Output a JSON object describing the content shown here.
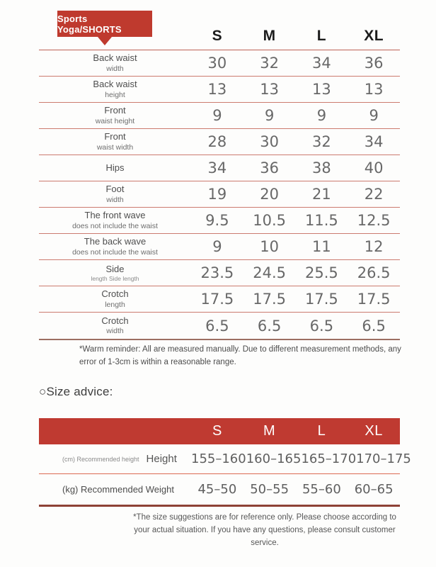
{
  "header": {
    "badge_label": "Sports Yoga/SHORTS"
  },
  "measurement_table": {
    "columns": [
      "S",
      "M",
      "L",
      "XL"
    ],
    "rows": [
      {
        "line1": "Back waist",
        "line2": "width",
        "values": [
          "30",
          "32",
          "34",
          "36"
        ]
      },
      {
        "line1": "Back waist",
        "line2": "height",
        "values": [
          "13",
          "13",
          "13",
          "13"
        ]
      },
      {
        "line1": "Front",
        "line2": "waist height",
        "values": [
          "9",
          "9",
          "9",
          "9"
        ]
      },
      {
        "line1": "Front",
        "line2": "waist width",
        "values": [
          "28",
          "30",
          "32",
          "34"
        ]
      },
      {
        "line1": "Hips",
        "line2": "",
        "values": [
          "34",
          "36",
          "38",
          "40"
        ]
      },
      {
        "line1": "Foot",
        "line2": "width",
        "values": [
          "19",
          "20",
          "21",
          "22"
        ]
      },
      {
        "line1": "The front wave",
        "line2": "does not include the waist",
        "values": [
          "9.5",
          "10.5",
          "11.5",
          "12.5"
        ]
      },
      {
        "line1": "The back wave",
        "line2": "does not include the waist",
        "values": [
          "9",
          "10",
          "11",
          "12"
        ]
      },
      {
        "line1": "Side",
        "line2": "length Side length",
        "values": [
          "23.5",
          "24.5",
          "25.5",
          "26.5"
        ]
      },
      {
        "line1": "Crotch",
        "line2": "length",
        "values": [
          "17.5",
          "17.5",
          "17.5",
          "17.5"
        ]
      },
      {
        "line1": "Crotch",
        "line2": "width",
        "values": [
          "6.5",
          "6.5",
          "6.5",
          "6.5"
        ]
      }
    ]
  },
  "notes": {
    "warm_reminder": "*Warm reminder: All are measured manually. Due to different measurement methods, any error of 1-3cm is within a reasonable range."
  },
  "size_advice": {
    "icon": "○",
    "title": "Size advice:",
    "columns": [
      "S",
      "M",
      "L",
      "XL"
    ],
    "rows": [
      {
        "prefix": "(cm) Recommended height",
        "label": "Height",
        "values": [
          "155–160",
          "160–165",
          "165–170",
          "170–175"
        ]
      },
      {
        "prefix": "(kg) Recommended Weight",
        "label": "",
        "values": [
          "45–50",
          "50–55",
          "55–60",
          "60–65"
        ]
      }
    ],
    "footnote": "*The size suggestions are for reference only. Please choose according to your actual situation. If you have any questions, please consult customer service."
  },
  "colors": {
    "badge_red": "#bf3a2e",
    "band_red": "#bf3a31",
    "row_separator": "#cc7b6f",
    "table_bottom_border": "#9d6f62",
    "advice_bottom_border": "#8e4136"
  }
}
